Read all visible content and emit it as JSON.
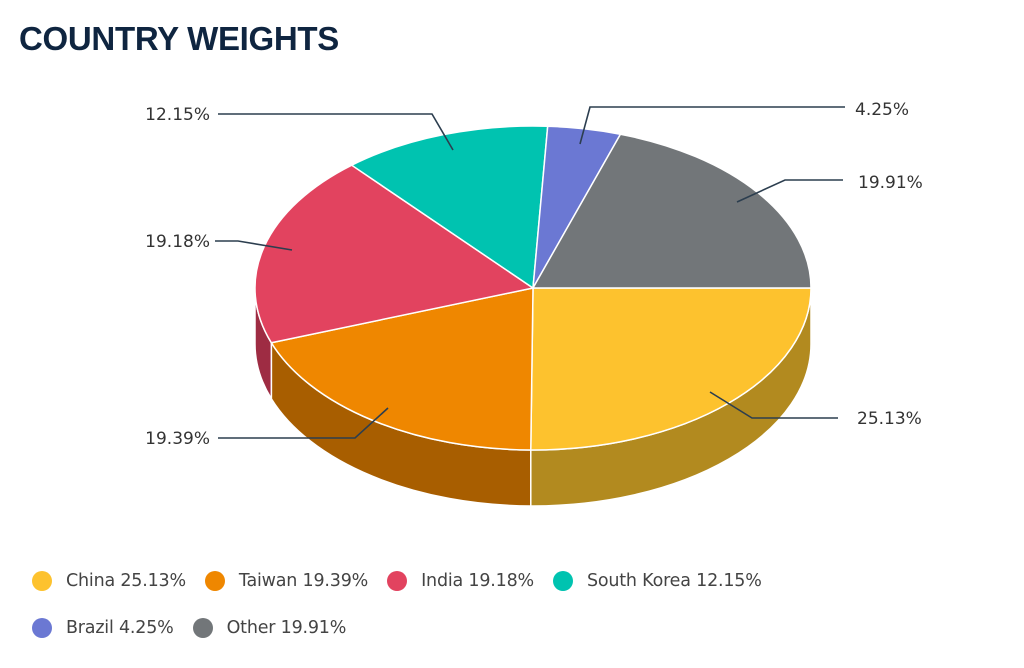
{
  "header": {
    "title": "COUNTRY WEIGHTS"
  },
  "chart_data": {
    "type": "pie",
    "style": "3d",
    "title": "COUNTRY WEIGHTS",
    "categories": [
      "China",
      "Taiwan",
      "India",
      "South Korea",
      "Brazil",
      "Other"
    ],
    "values": [
      25.13,
      19.39,
      19.18,
      12.15,
      4.25,
      19.91
    ],
    "unit": "%",
    "colors": [
      "#fdc22e",
      "#ef8700",
      "#e2435f",
      "#00c3b0",
      "#6b78d3",
      "#727679"
    ],
    "side_colors": [
      "#b28a1f",
      "#a85e00",
      "#9e2c43",
      "#008a7c",
      "#4b55a0",
      "#505456"
    ],
    "data_labels": [
      "25.13%",
      "19.39%",
      "19.18%",
      "12.15%",
      "4.25%",
      "19.91%"
    ],
    "legend_position": "bottom"
  },
  "legend": {
    "rows": [
      [
        {
          "label": "China 25.13%",
          "color": "#fdc22e"
        },
        {
          "label": "Taiwan 19.39%",
          "color": "#ef8700"
        },
        {
          "label": "India 19.18%",
          "color": "#e2435f"
        },
        {
          "label": "South Korea 12.15%",
          "color": "#00c3b0"
        }
      ],
      [
        {
          "label": "Brazil 4.25%",
          "color": "#6b78d3"
        },
        {
          "label": "Other 19.91%",
          "color": "#727679"
        }
      ]
    ]
  }
}
